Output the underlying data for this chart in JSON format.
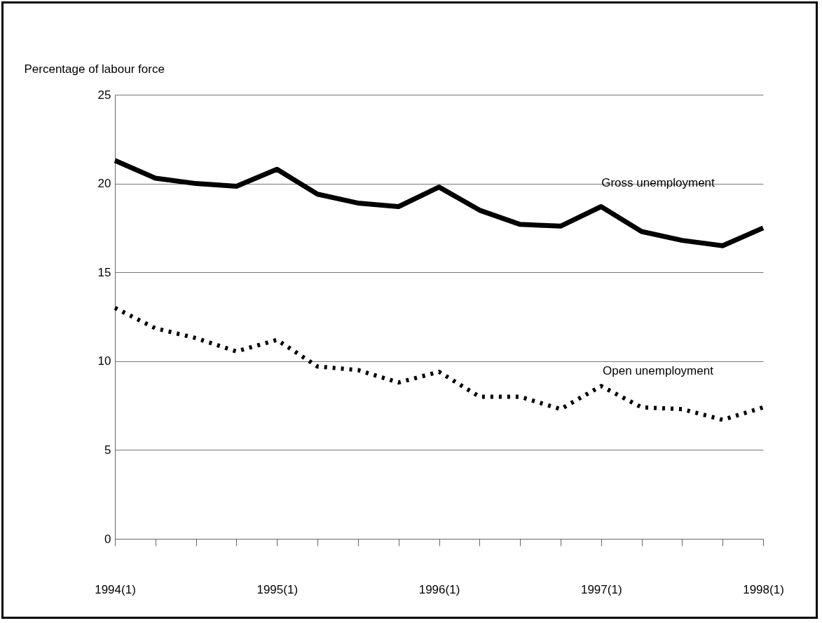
{
  "chart_data": {
    "type": "line",
    "ylabel": "Percentage of labour force",
    "categories": [
      "1994(1)",
      null,
      null,
      null,
      "1995(1)",
      null,
      null,
      null,
      "1996(1)",
      null,
      null,
      null,
      "1997(1)",
      null,
      null,
      null,
      "1998(1)"
    ],
    "series": [
      {
        "name": "Gross unemployment",
        "color": "#000000",
        "line_style": "solid",
        "values": [
          21.3,
          20.3,
          20.0,
          19.85,
          20.8,
          19.4,
          18.9,
          18.7,
          19.8,
          18.5,
          17.7,
          17.6,
          18.7,
          17.3,
          16.8,
          16.5,
          17.5
        ]
      },
      {
        "name": "Open unemployment",
        "color": "#000000",
        "line_style": "dotted",
        "values": [
          13.0,
          11.85,
          11.3,
          10.55,
          11.2,
          9.7,
          9.5,
          8.8,
          9.4,
          8.0,
          8.0,
          7.3,
          8.6,
          7.4,
          7.3,
          6.7,
          7.4
        ]
      }
    ],
    "ylim": [
      0,
      25
    ],
    "yticks": [
      0,
      5,
      10,
      15,
      20,
      25
    ],
    "grid": "y"
  }
}
